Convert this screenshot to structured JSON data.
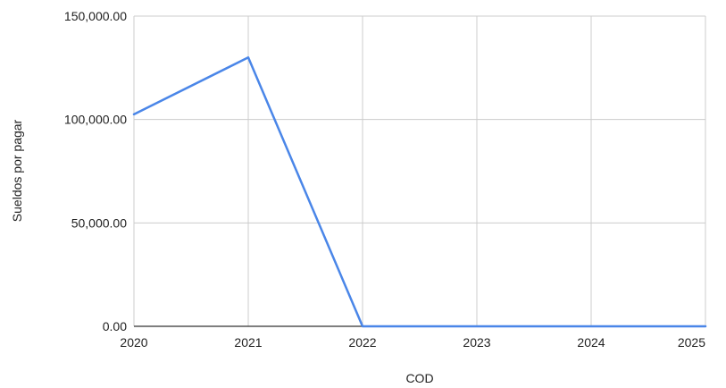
{
  "chart_data": {
    "type": "line",
    "title": "",
    "xlabel": "COD",
    "ylabel": "Sueldos por pagar",
    "x": [
      2020,
      2021,
      2022,
      2023,
      2024,
      2025
    ],
    "x_tick_labels": [
      "2020",
      "2021",
      "2022",
      "2023",
      "2024",
      "2025"
    ],
    "y_tick_labels": [
      "0.00",
      "50,000.00",
      "100,000.00",
      "150,000.00"
    ],
    "y_ticks": [
      0,
      50000,
      100000,
      150000
    ],
    "xlim": [
      2020,
      2025
    ],
    "ylim": [
      0,
      150000
    ],
    "grid": true,
    "legend": "none",
    "series": [
      {
        "values": [
          102500,
          130000,
          0,
          0,
          0,
          0
        ],
        "color": "#4a86e8"
      }
    ],
    "colors": {
      "grid": "#cccccc",
      "baseline": "#333333"
    }
  }
}
